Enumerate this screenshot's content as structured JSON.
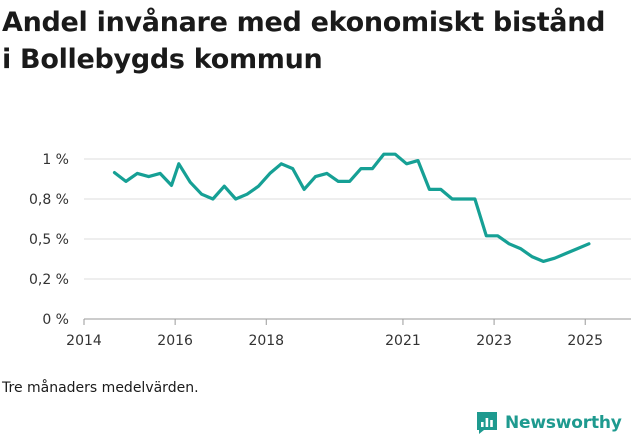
{
  "title": "Andel invånare med ekonomiskt bistånd i Bollebygds kommun",
  "note": "Tre månaders medelvärden.",
  "brand": {
    "name": "Newsworthy",
    "icon": "newsworthy-logo-icon",
    "color": "#1e9a8f"
  },
  "chart_data": {
    "type": "line",
    "title": "Andel invånare med ekonomiskt bistånd i Bollebygds kommun",
    "xlabel": "",
    "ylabel": "",
    "xlim": [
      2014.0,
      2025.5
    ],
    "ylim": [
      0,
      1.0
    ],
    "grid": true,
    "legend": "none",
    "line_color": "#16a095",
    "x_ticks": [
      {
        "value": 2014,
        "label": "2014"
      },
      {
        "value": 2016,
        "label": "2016"
      },
      {
        "value": 2018,
        "label": "2018"
      },
      {
        "value": 2021,
        "label": "2021"
      },
      {
        "value": 2023,
        "label": "2023"
      },
      {
        "value": 2025,
        "label": "2025"
      }
    ],
    "y_ticks": [
      {
        "value": 0,
        "label": "0 %"
      },
      {
        "value": 0.25,
        "label": "0,2 %"
      },
      {
        "value": 0.5,
        "label": "0,5 %"
      },
      {
        "value": 0.75,
        "label": "0,8 %"
      },
      {
        "value": 1.0,
        "label": "1 %"
      }
    ],
    "series": [
      {
        "name": "",
        "x": [
          2014.67,
          2014.92,
          2015.17,
          2015.42,
          2015.67,
          2015.92,
          2016.08,
          2016.33,
          2016.58,
          2016.83,
          2017.08,
          2017.33,
          2017.58,
          2017.83,
          2018.08,
          2018.33,
          2018.58,
          2018.83,
          2019.08,
          2019.33,
          2019.58,
          2019.83,
          2020.08,
          2020.33,
          2020.58,
          2020.83,
          2021.08,
          2021.33,
          2021.58,
          2021.83,
          2022.08,
          2022.33,
          2022.58,
          2022.83,
          2023.08,
          2023.33,
          2023.58,
          2023.83,
          2024.08,
          2024.33,
          2024.58,
          2024.83,
          2025.08
        ],
        "values": [
          0.915,
          0.86,
          0.91,
          0.89,
          0.91,
          0.835,
          0.97,
          0.855,
          0.78,
          0.75,
          0.83,
          0.75,
          0.78,
          0.83,
          0.91,
          0.97,
          0.94,
          0.81,
          0.89,
          0.91,
          0.86,
          0.86,
          0.94,
          0.94,
          1.03,
          1.03,
          0.97,
          0.99,
          0.81,
          0.81,
          0.75,
          0.75,
          0.75,
          0.52,
          0.52,
          0.47,
          0.44,
          0.39,
          0.36,
          0.38,
          0.41,
          0.44,
          0.47
        ]
      }
    ]
  }
}
